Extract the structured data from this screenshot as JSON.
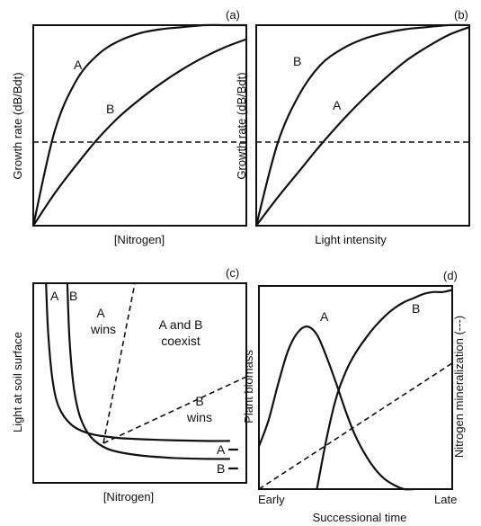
{
  "chart_data": [
    {
      "id": "a",
      "type": "line",
      "panel_label": "(a)",
      "xlabel": "[Nitrogen]",
      "ylabel": "Growth rate (dB/Bdt)",
      "series": [
        {
          "name": "A",
          "x": [
            0,
            0.1,
            0.2,
            0.3,
            0.4,
            0.5,
            0.6,
            0.7,
            0.8,
            0.9,
            1.0
          ],
          "y": [
            0.0,
            0.47,
            0.72,
            0.85,
            0.92,
            0.96,
            0.98,
            0.99,
            1.0,
            1.0,
            1.0
          ]
        },
        {
          "name": "B",
          "x": [
            0,
            0.1,
            0.2,
            0.3,
            0.4,
            0.5,
            0.6,
            0.7,
            0.8,
            0.9,
            1.0
          ],
          "y": [
            0.0,
            0.16,
            0.3,
            0.43,
            0.54,
            0.63,
            0.71,
            0.78,
            0.84,
            0.89,
            0.93
          ]
        }
      ],
      "hline": 0.42
    },
    {
      "id": "b",
      "type": "line",
      "panel_label": "(b)",
      "xlabel": "Light intensity",
      "ylabel": "Growth rate (dB/Bdt)",
      "series": [
        {
          "name": "B",
          "x": [
            0,
            0.1,
            0.2,
            0.3,
            0.4,
            0.5,
            0.6,
            0.7,
            0.8,
            0.9,
            1.0
          ],
          "y": [
            0.0,
            0.41,
            0.65,
            0.8,
            0.88,
            0.93,
            0.96,
            0.98,
            0.99,
            1.0,
            1.0
          ]
        },
        {
          "name": "A",
          "x": [
            0,
            0.1,
            0.2,
            0.3,
            0.4,
            0.5,
            0.6,
            0.7,
            0.8,
            0.9,
            1.0
          ],
          "y": [
            0.0,
            0.14,
            0.27,
            0.4,
            0.52,
            0.63,
            0.73,
            0.82,
            0.89,
            0.95,
            0.99
          ]
        }
      ],
      "hline": 0.42
    },
    {
      "id": "c",
      "type": "line",
      "panel_label": "(c)",
      "xlabel": "[Nitrogen]",
      "ylabel": "Light at soil surface",
      "series": [
        {
          "name": "A",
          "x": [
            0.06,
            0.07,
            0.09,
            0.12,
            0.18,
            0.27,
            0.4,
            0.6,
            0.8,
            0.92
          ],
          "y": [
            1.0,
            0.75,
            0.52,
            0.38,
            0.29,
            0.245,
            0.225,
            0.215,
            0.21,
            0.21
          ]
        },
        {
          "name": "B",
          "x": [
            0.16,
            0.17,
            0.19,
            0.22,
            0.27,
            0.35,
            0.48,
            0.65,
            0.82,
            0.92
          ],
          "y": [
            1.0,
            0.72,
            0.48,
            0.33,
            0.23,
            0.17,
            0.14,
            0.125,
            0.12,
            0.12
          ]
        }
      ],
      "region_labels": [
        {
          "lines": [
            "A",
            "wins"
          ]
        },
        {
          "lines": [
            "A and B",
            "coexist"
          ]
        },
        {
          "lines": [
            "B",
            "wins"
          ]
        }
      ],
      "line_end_labels": [
        "A",
        "B"
      ]
    },
    {
      "id": "d",
      "type": "line",
      "panel_label": "(d)",
      "xlabel": "Successional time",
      "ylabel": "Plant biomass",
      "y2label": "Nitrogen mineralization (---)",
      "x_tick_labels": [
        "Early",
        "Late"
      ],
      "series": [
        {
          "name": "A",
          "x": [
            0.0,
            0.05,
            0.1,
            0.15,
            0.2,
            0.25,
            0.3,
            0.35,
            0.4,
            0.45,
            0.5,
            0.55,
            0.6,
            0.65,
            0.7,
            0.75,
            0.8
          ],
          "y": [
            0.21,
            0.34,
            0.52,
            0.68,
            0.77,
            0.8,
            0.76,
            0.65,
            0.52,
            0.38,
            0.26,
            0.17,
            0.1,
            0.05,
            0.02,
            0.0,
            0.0
          ]
        },
        {
          "name": "B",
          "x": [
            0.3,
            0.35,
            0.4,
            0.45,
            0.5,
            0.55,
            0.6,
            0.65,
            0.7,
            0.75,
            0.8,
            0.85,
            0.9,
            0.95,
            1.0
          ],
          "y": [
            0.0,
            0.25,
            0.45,
            0.58,
            0.67,
            0.74,
            0.8,
            0.85,
            0.89,
            0.92,
            0.94,
            0.96,
            0.97,
            0.97,
            0.98
          ]
        }
      ],
      "dashed_line": {
        "x": [
          0.0,
          1.0
        ],
        "y": [
          0.0,
          0.62
        ]
      }
    }
  ]
}
